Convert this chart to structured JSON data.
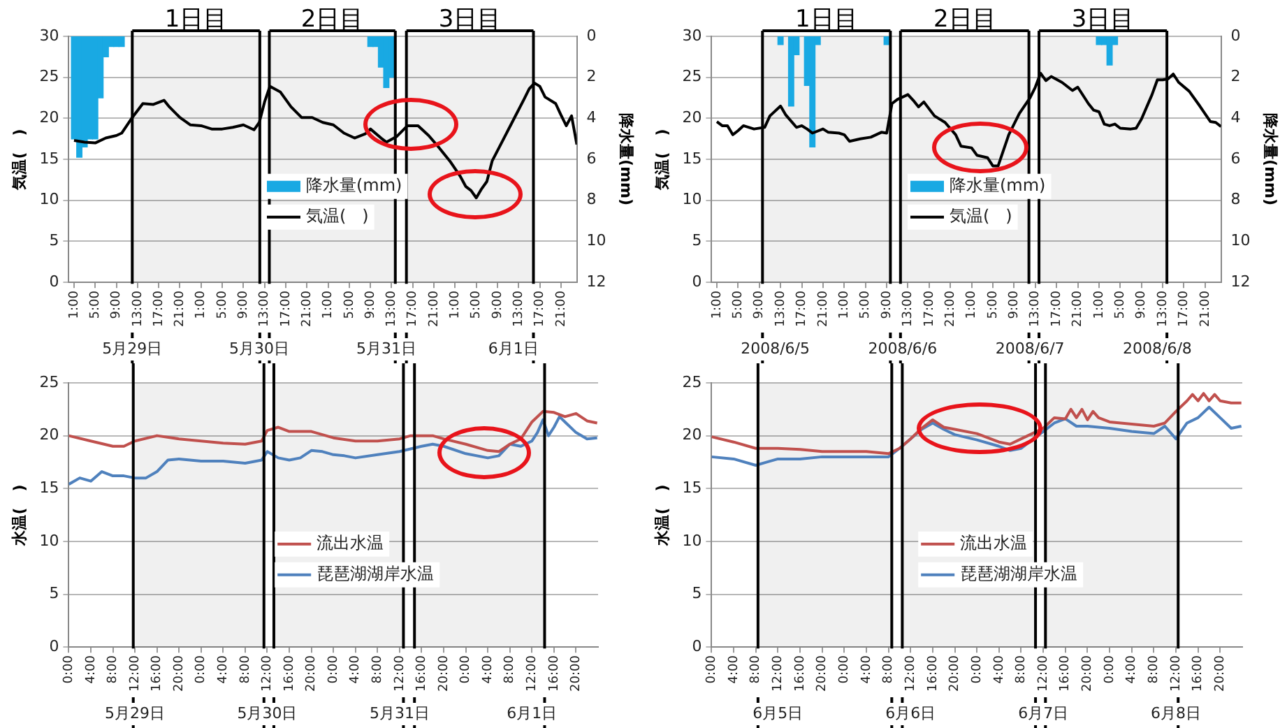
{
  "chart_data": [
    {
      "type": "line",
      "ylabel": "気温(   )",
      "y2label": "降水量(mm)",
      "legend": "center",
      "grid": "y",
      "marker": "none",
      "annotations": [
        "5月29日",
        "5月30日",
        "5月31日",
        "6月1日"
      ],
      "xlim": [
        "--05-29T00:00",
        "--06-02T00:00"
      ],
      "xticks": [
        {
          "value": "--05-29T01:00",
          "label": "1:00"
        },
        {
          "value": "--05-29T05:00",
          "label": "5:00"
        },
        {
          "value": "--05-29T09:00",
          "label": "9:00"
        },
        {
          "value": "--05-29T13:00",
          "label": "13:00"
        },
        {
          "value": "--05-29T17:00",
          "label": "17:00"
        },
        {
          "value": "--05-29T21:00",
          "label": "21:00"
        },
        {
          "value": "--05-30T01:00",
          "label": "1:00"
        },
        {
          "value": "--05-30T05:00",
          "label": "5:00"
        },
        {
          "value": "--05-30T09:00",
          "label": "9:00"
        },
        {
          "value": "--05-30T13:00",
          "label": "13:00"
        },
        {
          "value": "--05-30T17:00",
          "label": "17:00"
        },
        {
          "value": "--05-30T21:00",
          "label": "21:00"
        },
        {
          "value": "--05-31T01:00",
          "label": "1:00"
        },
        {
          "value": "--05-31T05:00",
          "label": "5:00"
        },
        {
          "value": "--05-31T09:00",
          "label": "9:00"
        },
        {
          "value": "--05-31T13:00",
          "label": "13:00"
        },
        {
          "value": "--05-31T17:00",
          "label": "17:00"
        },
        {
          "value": "--05-31T21:00",
          "label": "21:00"
        },
        {
          "value": "--06-01T01:00",
          "label": "1:00"
        },
        {
          "value": "--06-01T05:00",
          "label": "5:00"
        },
        {
          "value": "--06-01T09:00",
          "label": "9:00"
        },
        {
          "value": "--06-01T13:00",
          "label": "13:00"
        },
        {
          "value": "--06-01T17:00",
          "label": "17:00"
        },
        {
          "value": "--06-01T21:00",
          "label": "21:00"
        }
      ],
      "ylim": [
        0,
        30
      ],
      "yticks": [
        0,
        5,
        10,
        15,
        20,
        25,
        30
      ],
      "y2lim": [
        12,
        0
      ],
      "y2ticks": [
        0,
        2,
        4,
        6,
        8,
        10,
        12
      ],
      "bands": [
        {
          "axis": "x",
          "from": "--05-29T12:00",
          "to": "--05-30T12:06",
          "label": "1日目",
          "color": "#000000"
        },
        {
          "axis": "x",
          "from": "--05-30T13:54",
          "to": "--05-31T13:42",
          "label": "2日目",
          "color": "#000000"
        },
        {
          "axis": "x",
          "from": "--05-31T15:48",
          "to": "--06-01T15:48",
          "label": "3日目",
          "color": "#000000"
        }
      ],
      "series": [
        {
          "name": "降水量(mm)",
          "type": "bar",
          "axis": "y2",
          "color": "#19a9e3",
          "x": [
            "--05-29T01:00",
            "--05-29T02:00",
            "--05-29T03:00",
            "--05-29T04:00",
            "--05-29T05:00",
            "--05-29T06:00",
            "--05-29T07:00",
            "--05-29T08:00",
            "--05-29T09:00",
            "--05-29T10:00",
            "--05-31T09:00",
            "--05-31T10:00",
            "--05-31T11:00",
            "--05-31T12:00",
            "--05-31T13:00"
          ],
          "values": [
            5.0,
            5.9,
            5.4,
            5.0,
            5.0,
            3.0,
            1.0,
            0.5,
            0.5,
            0.5,
            0.5,
            0.5,
            1.5,
            2.5,
            2.0
          ]
        },
        {
          "name": "気温(   )",
          "color": "#000000",
          "x": [
            "--05-29T01:00",
            "--05-29T03:00",
            "--05-29T05:00",
            "--05-29T07:00",
            "--05-29T09:00",
            "--05-29T10:00",
            "--05-29T12:00",
            "--05-29T14:00",
            "--05-29T16:00",
            "--05-29T18:00",
            "--05-29T19:00",
            "--05-29T21:00",
            "--05-29T23:00",
            "--05-30T01:00",
            "--05-30T03:00",
            "--05-30T05:00",
            "--05-30T07:00",
            "--05-30T09:00",
            "--05-30T11:00",
            "--05-30T12:00",
            "--05-30T13:00",
            "--05-30T14:00",
            "--05-30T16:00",
            "--05-30T18:00",
            "--05-30T20:00",
            "--05-30T22:00",
            "--05-31T00:00",
            "--05-31T02:00",
            "--05-31T04:00",
            "--05-31T06:00",
            "--05-31T08:00",
            "--05-31T09:00",
            "--05-31T11:00",
            "--05-31T12:00",
            "--05-31T14:00",
            "--05-31T16:00",
            "--05-31T18:00",
            "--05-31T20:00",
            "--05-31T22:00",
            "--06-01T00:00",
            "--06-01T02:00",
            "--06-01T03:00",
            "--06-01T04:00",
            "--06-01T05:00",
            "--06-01T06:00",
            "--06-01T07:00",
            "--06-01T08:00",
            "--06-01T10:00",
            "--06-01T12:00",
            "--06-01T14:00",
            "--06-01T15:00",
            "--06-01T16:00",
            "--06-01T17:00",
            "--06-01T18:00",
            "--06-01T20:00",
            "--06-01T21:00",
            "--06-01T22:00",
            "--06-01T23:00",
            "--06-02T00:00"
          ],
          "values": [
            17.3,
            17.1,
            17.0,
            17.6,
            17.9,
            18.2,
            20.1,
            21.8,
            21.7,
            22.2,
            21.4,
            20.1,
            19.2,
            19.1,
            18.7,
            18.7,
            18.9,
            19.2,
            18.6,
            19.5,
            22.0,
            23.9,
            23.2,
            21.4,
            20.1,
            20.1,
            19.5,
            19.2,
            18.2,
            17.6,
            18.1,
            18.7,
            17.6,
            17.1,
            17.8,
            19.1,
            19.1,
            17.9,
            16.4,
            14.8,
            12.9,
            11.7,
            11.2,
            10.3,
            11.4,
            12.3,
            14.8,
            17.3,
            19.8,
            22.3,
            23.6,
            24.3,
            23.9,
            22.6,
            21.8,
            20.4,
            19.1,
            20.3,
            16.8
          ]
        }
      ]
    },
    {
      "type": "line",
      "ylabel": "気温(   )",
      "y2label": "降水量(mm)",
      "legend": "center",
      "grid": "y",
      "marker": "none",
      "annotations": [
        "2008/6/5",
        "2008/6/6",
        "2008/6/7",
        "2008/6/8"
      ],
      "xlim": [
        "2008-06-05T00:00",
        "2008-06-09T00:00"
      ],
      "xticks": [
        {
          "value": "2008-06-05T01:00",
          "label": "1:00"
        },
        {
          "value": "2008-06-05T05:00",
          "label": "5:00"
        },
        {
          "value": "2008-06-05T09:00",
          "label": "9:00"
        },
        {
          "value": "2008-06-05T13:00",
          "label": "13:00"
        },
        {
          "value": "2008-06-05T17:00",
          "label": "17:00"
        },
        {
          "value": "2008-06-05T21:00",
          "label": "21:00"
        },
        {
          "value": "2008-06-06T01:00",
          "label": "1:00"
        },
        {
          "value": "2008-06-06T05:00",
          "label": "5:00"
        },
        {
          "value": "2008-06-06T09:00",
          "label": "9:00"
        },
        {
          "value": "2008-06-06T13:00",
          "label": "13:00"
        },
        {
          "value": "2008-06-06T17:00",
          "label": "17:00"
        },
        {
          "value": "2008-06-06T21:00",
          "label": "21:00"
        },
        {
          "value": "2008-06-07T01:00",
          "label": "1:00"
        },
        {
          "value": "2008-06-07T05:00",
          "label": "5:00"
        },
        {
          "value": "2008-06-07T09:00",
          "label": "9:00"
        },
        {
          "value": "2008-06-07T13:00",
          "label": "13:00"
        },
        {
          "value": "2008-06-07T17:00",
          "label": "17:00"
        },
        {
          "value": "2008-06-07T21:00",
          "label": "21:00"
        },
        {
          "value": "2008-06-08T01:00",
          "label": "1:00"
        },
        {
          "value": "2008-06-08T05:00",
          "label": "5:00"
        },
        {
          "value": "2008-06-08T09:00",
          "label": "9:00"
        },
        {
          "value": "2008-06-08T13:00",
          "label": "13:00"
        },
        {
          "value": "2008-06-08T17:00",
          "label": "17:00"
        },
        {
          "value": "2008-06-08T21:00",
          "label": "21:00"
        }
      ],
      "ylim": [
        0,
        30
      ],
      "yticks": [
        0,
        5,
        10,
        15,
        20,
        25,
        30
      ],
      "y2lim": [
        12,
        0
      ],
      "y2ticks": [
        0,
        2,
        4,
        6,
        8,
        10,
        12
      ],
      "bands": [
        {
          "axis": "x",
          "from": "2008-06-05T09:36",
          "to": "2008-06-06T09:42",
          "label": "1日目",
          "color": "#000000"
        },
        {
          "axis": "x",
          "from": "2008-06-06T11:36",
          "to": "2008-06-07T11:48",
          "label": "2日目",
          "color": "#000000"
        },
        {
          "axis": "x",
          "from": "2008-06-07T13:42",
          "to": "2008-06-08T13:48",
          "label": "3日目",
          "color": "#000000"
        }
      ],
      "series": [
        {
          "name": "降水量(mm)",
          "type": "bar",
          "axis": "y2",
          "color": "#19a9e3",
          "x": [
            "2008-06-05T13:00",
            "2008-06-05T15:00",
            "2008-06-05T16:00",
            "2008-06-05T18:00",
            "2008-06-05T19:00",
            "2008-06-05T20:00",
            "2008-06-06T09:00",
            "2008-06-08T01:00",
            "2008-06-08T02:00",
            "2008-06-08T03:00",
            "2008-06-08T04:00"
          ],
          "values": [
            0.4,
            3.4,
            0.9,
            2.4,
            5.4,
            0.4,
            0.4,
            0.4,
            0.4,
            1.4,
            0.4
          ]
        },
        {
          "name": "気温(   )",
          "color": "#000000",
          "x": [
            "2008-06-05T01:00",
            "2008-06-05T02:00",
            "2008-06-05T03:00",
            "2008-06-05T04:00",
            "2008-06-05T05:00",
            "2008-06-05T06:00",
            "2008-06-05T08:00",
            "2008-06-05T10:00",
            "2008-06-05T11:00",
            "2008-06-05T13:00",
            "2008-06-05T14:00",
            "2008-06-05T16:00",
            "2008-06-05T17:00",
            "2008-06-05T18:00",
            "2008-06-05T19:00",
            "2008-06-05T21:00",
            "2008-06-05T22:00",
            "2008-06-06T00:00",
            "2008-06-06T01:00",
            "2008-06-06T02:00",
            "2008-06-06T04:00",
            "2008-06-06T06:00",
            "2008-06-06T08:00",
            "2008-06-06T09:00",
            "2008-06-06T10:00",
            "2008-06-06T11:00",
            "2008-06-06T13:00",
            "2008-06-06T14:00",
            "2008-06-06T15:00",
            "2008-06-06T16:00",
            "2008-06-06T18:00",
            "2008-06-06T20:00",
            "2008-06-06T22:00",
            "2008-06-06T23:00",
            "2008-06-07T01:00",
            "2008-06-07T02:00",
            "2008-06-07T04:00",
            "2008-06-07T05:00",
            "2008-06-07T06:00",
            "2008-06-07T07:00",
            "2008-06-07T08:00",
            "2008-06-07T10:00",
            "2008-06-07T12:00",
            "2008-06-07T13:00",
            "2008-06-07T14:00",
            "2008-06-07T15:00",
            "2008-06-07T16:00",
            "2008-06-07T18:00",
            "2008-06-07T20:00",
            "2008-06-07T21:00",
            "2008-06-07T23:00",
            "2008-06-08T00:00",
            "2008-06-08T01:00",
            "2008-06-08T02:00",
            "2008-06-08T03:00",
            "2008-06-08T04:00",
            "2008-06-08T05:00",
            "2008-06-08T07:00",
            "2008-06-08T08:00",
            "2008-06-08T09:00",
            "2008-06-08T11:00",
            "2008-06-08T12:00",
            "2008-06-08T13:00",
            "2008-06-08T14:00",
            "2008-06-08T15:00",
            "2008-06-08T16:00",
            "2008-06-08T18:00",
            "2008-06-08T20:00",
            "2008-06-08T22:00",
            "2008-06-08T23:00",
            "2008-06-09T00:00"
          ],
          "values": [
            19.6,
            19.1,
            19.1,
            18.0,
            18.5,
            19.1,
            18.7,
            18.9,
            20.3,
            21.5,
            20.4,
            18.9,
            19.1,
            18.7,
            18.2,
            18.7,
            18.3,
            18.2,
            18.0,
            17.2,
            17.5,
            17.7,
            18.3,
            18.2,
            21.8,
            22.3,
            22.9,
            22.2,
            21.4,
            22.0,
            20.3,
            19.5,
            18.0,
            16.6,
            16.4,
            15.5,
            15.2,
            14.2,
            14.2,
            16.1,
            18.0,
            20.6,
            22.5,
            23.8,
            25.5,
            24.6,
            25.1,
            24.4,
            23.4,
            23.8,
            21.8,
            21.0,
            20.8,
            19.3,
            19.1,
            19.3,
            18.8,
            18.7,
            18.8,
            19.9,
            22.9,
            24.7,
            24.7,
            24.8,
            25.4,
            24.4,
            23.3,
            21.5,
            19.6,
            19.5,
            19.0
          ]
        }
      ]
    },
    {
      "type": "line",
      "ylabel": "水温(   )",
      "legend": "center",
      "grid": "y",
      "marker": "none",
      "annotations": [
        "5月29日",
        "5月30日",
        "5月31日",
        "6月1日"
      ],
      "xlim": [
        "--05-29T00:00",
        "--06-02T00:00"
      ],
      "xticks": [
        {
          "value": "--05-29T00:00",
          "label": "0:00"
        },
        {
          "value": "--05-29T04:00",
          "label": "4:00"
        },
        {
          "value": "--05-29T08:00",
          "label": "8:00"
        },
        {
          "value": "--05-29T12:00",
          "label": "12:00"
        },
        {
          "value": "--05-29T16:00",
          "label": "16:00"
        },
        {
          "value": "--05-29T20:00",
          "label": "20:00"
        },
        {
          "value": "--05-30T00:00",
          "label": "0:00"
        },
        {
          "value": "--05-30T04:00",
          "label": "4:00"
        },
        {
          "value": "--05-30T08:00",
          "label": "8:00"
        },
        {
          "value": "--05-30T12:00",
          "label": "12:00"
        },
        {
          "value": "--05-30T16:00",
          "label": "16:00"
        },
        {
          "value": "--05-30T20:00",
          "label": "20:00"
        },
        {
          "value": "--05-31T00:00",
          "label": "0:00"
        },
        {
          "value": "--05-31T04:00",
          "label": "4:00"
        },
        {
          "value": "--05-31T08:00",
          "label": "8:00"
        },
        {
          "value": "--05-31T12:00",
          "label": "12:00"
        },
        {
          "value": "--05-31T16:00",
          "label": "16:00"
        },
        {
          "value": "--05-31T20:00",
          "label": "20:00"
        },
        {
          "value": "--06-01T00:00",
          "label": "0:00"
        },
        {
          "value": "--06-01T04:00",
          "label": "4:00"
        },
        {
          "value": "--06-01T08:00",
          "label": "8:00"
        },
        {
          "value": "--06-01T12:00",
          "label": "12:00"
        },
        {
          "value": "--06-01T16:00",
          "label": "16:00"
        },
        {
          "value": "--06-01T20:00",
          "label": "20:00"
        }
      ],
      "ylim": [
        0,
        25
      ],
      "yticks": [
        0,
        5,
        10,
        15,
        20,
        25
      ],
      "bands": [
        {
          "axis": "x",
          "from": "--05-29T11:42",
          "to": "--05-30T11:24",
          "color": "#000000"
        },
        {
          "axis": "x",
          "from": "--05-30T13:12",
          "to": "--05-31T12:42",
          "color": "#000000"
        },
        {
          "axis": "x",
          "from": "--05-31T14:42",
          "to": "--06-01T14:18",
          "color": "#000000"
        }
      ],
      "series": [
        {
          "name": "流出水温",
          "color": "#c0504d",
          "x": [
            "--05-29T00:00",
            "--05-29T04:00",
            "--05-29T08:00",
            "--05-29T10:00",
            "--05-29T12:00",
            "--05-29T16:00",
            "--05-29T20:00",
            "--05-30T00:00",
            "--05-30T04:00",
            "--05-30T08:00",
            "--05-30T11:00",
            "--05-30T12:00",
            "--05-30T14:00",
            "--05-30T16:00",
            "--05-30T20:00",
            "--05-31T00:00",
            "--05-31T04:00",
            "--05-31T08:00",
            "--05-31T12:00",
            "--05-31T14:00",
            "--05-31T18:00",
            "--05-31T20:00",
            "--06-01T00:00",
            "--06-01T04:00",
            "--06-01T06:00",
            "--06-01T08:00",
            "--06-01T10:00",
            "--06-01T12:00",
            "--06-01T14:00",
            "--06-01T16:00",
            "--06-01T18:00",
            "--06-01T20:00",
            "--06-01T22:00",
            "--06-01T23:50"
          ],
          "values": [
            20.0,
            19.5,
            19.0,
            19.0,
            19.5,
            20.0,
            19.7,
            19.5,
            19.3,
            19.2,
            19.5,
            20.5,
            20.8,
            20.4,
            20.4,
            19.8,
            19.5,
            19.5,
            19.7,
            20.0,
            20.0,
            19.7,
            19.2,
            18.6,
            18.5,
            19.2,
            19.7,
            21.3,
            22.3,
            22.2,
            21.8,
            22.1,
            21.4,
            21.2
          ]
        },
        {
          "name": "琵琶湖湖岸水温",
          "color": "#4f81bd",
          "x": [
            "--05-29T00:00",
            "--05-29T02:00",
            "--05-29T04:00",
            "--05-29T06:00",
            "--05-29T08:00",
            "--05-29T10:00",
            "--05-29T12:00",
            "--05-29T14:00",
            "--05-29T16:00",
            "--05-29T18:00",
            "--05-29T20:00",
            "--05-30T00:00",
            "--05-30T04:00",
            "--05-30T08:00",
            "--05-30T11:00",
            "--05-30T12:00",
            "--05-30T14:00",
            "--05-30T16:00",
            "--05-30T18:00",
            "--05-30T20:00",
            "--05-30T22:00",
            "--05-31T00:00",
            "--05-31T02:00",
            "--05-31T04:00",
            "--05-31T08:00",
            "--05-31T12:00",
            "--05-31T16:00",
            "--05-31T18:00",
            "--05-31T20:00",
            "--06-01T00:00",
            "--06-01T04:00",
            "--06-01T06:00",
            "--06-01T08:00",
            "--06-01T10:00",
            "--06-01T12:00",
            "--06-01T13:00",
            "--06-01T14:00",
            "--06-01T15:00",
            "--06-01T16:00",
            "--06-01T17:00",
            "--06-01T18:00",
            "--06-01T20:00",
            "--06-01T22:00",
            "--06-01T23:50"
          ],
          "values": [
            15.4,
            16.0,
            15.7,
            16.6,
            16.2,
            16.2,
            16.0,
            16.0,
            16.6,
            17.7,
            17.8,
            17.6,
            17.6,
            17.4,
            17.7,
            18.5,
            17.9,
            17.7,
            17.9,
            18.6,
            18.5,
            18.2,
            18.1,
            17.9,
            18.2,
            18.5,
            19.0,
            19.2,
            19.0,
            18.3,
            17.9,
            18.1,
            19.2,
            19.0,
            19.5,
            20.3,
            21.5,
            20.0,
            20.8,
            21.8,
            21.3,
            20.3,
            19.7,
            19.8
          ]
        }
      ]
    },
    {
      "type": "line",
      "ylabel": "水温(   )",
      "legend": "center",
      "grid": "y",
      "marker": "none",
      "annotations": [
        "6月5日",
        "6月6日",
        "6月7日",
        "6月8日"
      ],
      "xlim": [
        "--06-05T00:00",
        "--06-09T00:00"
      ],
      "xticks": [
        {
          "value": "--06-05T00:00",
          "label": "0:00"
        },
        {
          "value": "--06-05T04:00",
          "label": "4:00"
        },
        {
          "value": "--06-05T08:00",
          "label": "8:00"
        },
        {
          "value": "--06-05T12:00",
          "label": "12:00"
        },
        {
          "value": "--06-05T16:00",
          "label": "16:00"
        },
        {
          "value": "--06-05T20:00",
          "label": "20:00"
        },
        {
          "value": "--06-06T00:00",
          "label": "0:00"
        },
        {
          "value": "--06-06T04:00",
          "label": "4:00"
        },
        {
          "value": "--06-06T08:00",
          "label": "8:00"
        },
        {
          "value": "--06-06T12:00",
          "label": "12:00"
        },
        {
          "value": "--06-06T16:00",
          "label": "16:00"
        },
        {
          "value": "--06-06T20:00",
          "label": "20:00"
        },
        {
          "value": "--06-07T00:00",
          "label": "0:00"
        },
        {
          "value": "--06-07T04:00",
          "label": "4:00"
        },
        {
          "value": "--06-07T08:00",
          "label": "8:00"
        },
        {
          "value": "--06-07T12:00",
          "label": "12:00"
        },
        {
          "value": "--06-07T16:00",
          "label": "16:00"
        },
        {
          "value": "--06-07T20:00",
          "label": "20:00"
        },
        {
          "value": "--06-08T00:00",
          "label": "0:00"
        },
        {
          "value": "--06-08T04:00",
          "label": "4:00"
        },
        {
          "value": "--06-08T08:00",
          "label": "8:00"
        },
        {
          "value": "--06-08T12:00",
          "label": "12:00"
        },
        {
          "value": "--06-08T16:00",
          "label": "16:00"
        },
        {
          "value": "--06-08T20:00",
          "label": "20:00"
        }
      ],
      "ylim": [
        0,
        25
      ],
      "yticks": [
        0,
        5,
        10,
        15,
        20,
        25
      ],
      "bands": [
        {
          "axis": "x",
          "from": "--06-05T08:24",
          "to": "--06-06T08:36",
          "color": "#000000"
        },
        {
          "axis": "x",
          "from": "--06-06T10:30",
          "to": "--06-07T10:36",
          "color": "#000000"
        },
        {
          "axis": "x",
          "from": "--06-07T12:24",
          "to": "--06-08T12:24",
          "color": "#000000"
        }
      ],
      "series": [
        {
          "name": "流出水温",
          "color": "#c0504d",
          "x": [
            "--06-05T00:00",
            "--06-05T04:00",
            "--06-05T08:00",
            "--06-05T12:00",
            "--06-05T16:00",
            "--06-05T20:00",
            "--06-06T00:00",
            "--06-06T04:00",
            "--06-06T08:00",
            "--06-06T10:00",
            "--06-06T12:00",
            "--06-06T14:00",
            "--06-06T16:00",
            "--06-06T18:00",
            "--06-06T20:00",
            "--06-07T00:00",
            "--06-07T04:00",
            "--06-07T06:00",
            "--06-07T08:00",
            "--06-07T10:00",
            "--06-07T12:00",
            "--06-07T14:00",
            "--06-07T16:00",
            "--06-07T17:00",
            "--06-07T18:00",
            "--06-07T19:00",
            "--06-07T20:00",
            "--06-07T21:00",
            "--06-07T22:00",
            "--06-08T00:00",
            "--06-08T04:00",
            "--06-08T08:00",
            "--06-08T10:00",
            "--06-08T12:00",
            "--06-08T14:00",
            "--06-08T15:00",
            "--06-08T16:00",
            "--06-08T17:00",
            "--06-08T18:00",
            "--06-08T19:00",
            "--06-08T20:00",
            "--06-08T22:00",
            "--06-08T23:50"
          ],
          "values": [
            19.9,
            19.4,
            18.8,
            18.8,
            18.7,
            18.5,
            18.5,
            18.5,
            18.3,
            18.8,
            19.7,
            20.7,
            21.5,
            20.8,
            20.6,
            20.2,
            19.4,
            19.2,
            19.7,
            20.2,
            20.7,
            21.7,
            21.6,
            22.5,
            21.7,
            22.5,
            21.5,
            22.3,
            21.7,
            21.3,
            21.1,
            20.9,
            21.2,
            22.3,
            23.3,
            23.9,
            23.3,
            24.0,
            23.3,
            23.9,
            23.3,
            23.1,
            23.1
          ]
        },
        {
          "name": "琵琶湖湖岸水温",
          "color": "#4f81bd",
          "x": [
            "--06-05T00:00",
            "--06-05T04:00",
            "--06-05T08:00",
            "--06-05T10:00",
            "--06-05T12:00",
            "--06-05T16:00",
            "--06-05T20:00",
            "--06-06T00:00",
            "--06-06T04:00",
            "--06-06T08:00",
            "--06-06T10:00",
            "--06-06T12:00",
            "--06-06T14:00",
            "--06-06T16:00",
            "--06-06T18:00",
            "--06-06T20:00",
            "--06-07T00:00",
            "--06-07T04:00",
            "--06-07T06:00",
            "--06-07T08:00",
            "--06-07T10:00",
            "--06-07T12:00",
            "--06-07T14:00",
            "--06-07T16:00",
            "--06-07T18:00",
            "--06-07T20:00",
            "--06-08T00:00",
            "--06-08T04:00",
            "--06-08T08:00",
            "--06-08T10:00",
            "--06-08T12:00",
            "--06-08T14:00",
            "--06-08T16:00",
            "--06-08T18:00",
            "--06-08T20:00",
            "--06-08T22:00",
            "--06-08T23:50"
          ],
          "values": [
            18.0,
            17.8,
            17.2,
            17.5,
            17.8,
            17.8,
            18.0,
            18.0,
            18.0,
            18.0,
            18.8,
            19.7,
            20.6,
            21.2,
            20.6,
            20.1,
            19.6,
            19.0,
            18.6,
            18.8,
            19.6,
            20.4,
            21.2,
            21.6,
            20.9,
            20.9,
            20.7,
            20.4,
            20.2,
            20.9,
            19.7,
            21.2,
            21.7,
            22.7,
            21.7,
            20.7,
            20.9
          ]
        }
      ]
    }
  ]
}
